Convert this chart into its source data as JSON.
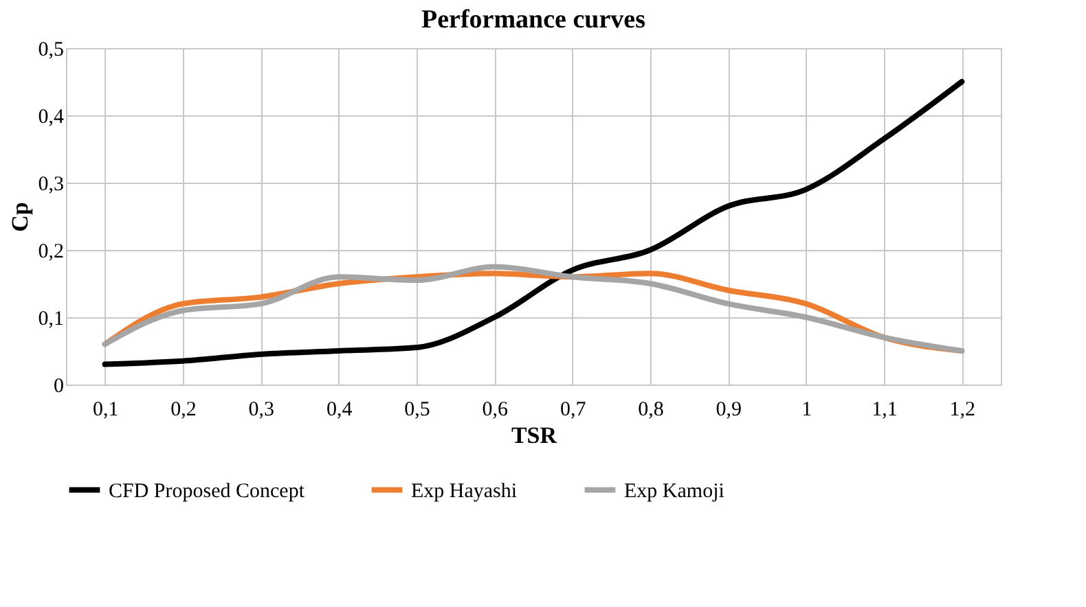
{
  "chart_data": {
    "type": "line",
    "title": "Performance curves",
    "xlabel": "TSR",
    "ylabel": "Cp",
    "categories": [
      "0,1",
      "0,2",
      "0,3",
      "0,4",
      "0,5",
      "0,6",
      "0,7",
      "0,8",
      "0,9",
      "1",
      "1,1",
      "1,2"
    ],
    "series": [
      {
        "name": "CFD Proposed Concept",
        "color": "#000000",
        "values": [
          0.03,
          0.035,
          0.045,
          0.05,
          0.055,
          0.1,
          0.17,
          0.2,
          0.265,
          0.29,
          0.365,
          0.45
        ]
      },
      {
        "name": "Exp Hayashi",
        "color": "#ed7d31",
        "values": [
          0.06,
          0.12,
          0.13,
          0.15,
          0.16,
          0.165,
          0.16,
          0.165,
          0.14,
          0.12,
          0.07,
          0.05
        ]
      },
      {
        "name": "Exp Kamoji",
        "color": "#a5a5a5",
        "values": [
          0.06,
          0.11,
          0.12,
          0.16,
          0.155,
          0.175,
          0.16,
          0.15,
          0.12,
          0.1,
          0.07,
          0.05
        ]
      }
    ],
    "ylim": [
      0,
      0.5
    ],
    "yticks": [
      0,
      {
        "value": 0.1,
        "label": "0,1"
      },
      {
        "value": 0.2,
        "label": "0,2"
      },
      {
        "value": 0.3,
        "label": "0,3"
      },
      {
        "value": 0.4,
        "label": "0,4"
      },
      {
        "value": 0.5,
        "label": "0,5"
      }
    ],
    "grid": true,
    "legend": "bottom",
    "marker": "none",
    "line_style": "solid"
  }
}
